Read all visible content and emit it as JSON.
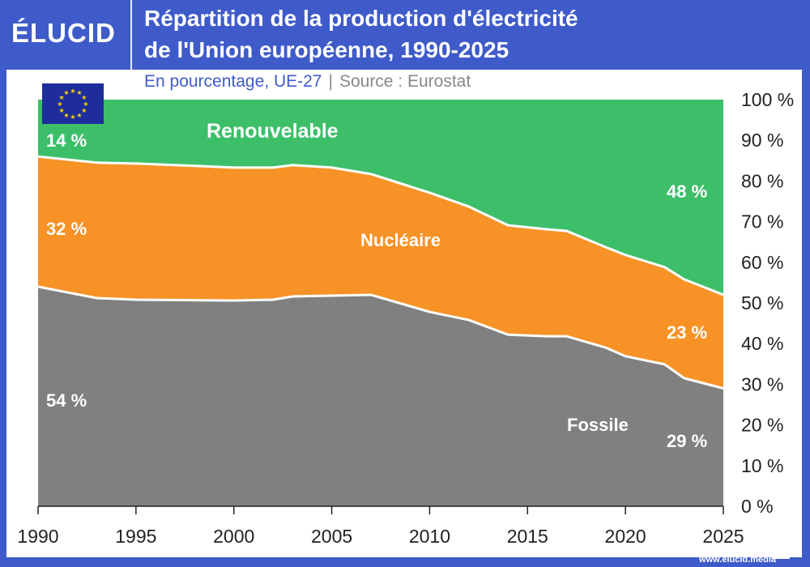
{
  "header": {
    "logo": "ÉLUCID",
    "title_line1": "Répartition de la production d'électricité",
    "title_line2": "de l'Union européenne, 1990-2025",
    "subtitle": "En pourcentage, UE-27",
    "separator": "|",
    "source": "Source : Eurostat",
    "footer": "www.elucid.media"
  },
  "chart_data": {
    "type": "area",
    "stacked": true,
    "title": "Répartition de la production d'électricité de l'Union européenne, 1990-2025",
    "subtitle": "En pourcentage, UE-27",
    "x": [
      1990,
      1993,
      1995,
      2000,
      2002,
      2003,
      2005,
      2007,
      2010,
      2012,
      2014,
      2016,
      2017,
      2019,
      2020,
      2022,
      2023,
      2025
    ],
    "series": [
      {
        "name": "Fossile",
        "color": "#808080",
        "values": [
          54,
          51.2,
          50.8,
          50.6,
          50.8,
          51.6,
          51.8,
          52,
          47.8,
          45.8,
          42.2,
          41.8,
          41.8,
          39,
          36.9,
          34.9,
          31.5,
          29
        ]
      },
      {
        "name": "Nucléaire",
        "color": "#f79226",
        "values": [
          32,
          33.3,
          33.5,
          32.7,
          32.5,
          32.3,
          31.5,
          29.7,
          29.3,
          27.9,
          26.9,
          26.3,
          25.9,
          24.7,
          24.9,
          23.9,
          24.3,
          23
        ]
      },
      {
        "name": "Renouvelable",
        "color": "#3dbf6a",
        "values": [
          14,
          15.5,
          15.7,
          16.7,
          16.7,
          16.1,
          16.7,
          18.3,
          22.9,
          26.3,
          30.9,
          31.9,
          32.3,
          36.3,
          38.2,
          41.2,
          44.2,
          48
        ]
      }
    ],
    "annotations": {
      "fossil_start": "54 %",
      "fossil_end": "29 %",
      "nuclear_start": "32 %",
      "nuclear_end": "23 %",
      "renew_start": "14 %",
      "renew_end": "48 %"
    },
    "xlim": [
      1990,
      2025
    ],
    "ylim": [
      0,
      100
    ],
    "x_ticks": [
      "1990",
      "1995",
      "2000",
      "2005",
      "2010",
      "2015",
      "2020",
      "2025"
    ],
    "y_ticks": [
      "0 %",
      "10 %",
      "20 %",
      "30 %",
      "40 %",
      "50 %",
      "60 %",
      "70 %",
      "80 %",
      "90 %",
      "100 %"
    ],
    "y_axis_side": "right",
    "grid": false,
    "legend": "inline labels"
  }
}
